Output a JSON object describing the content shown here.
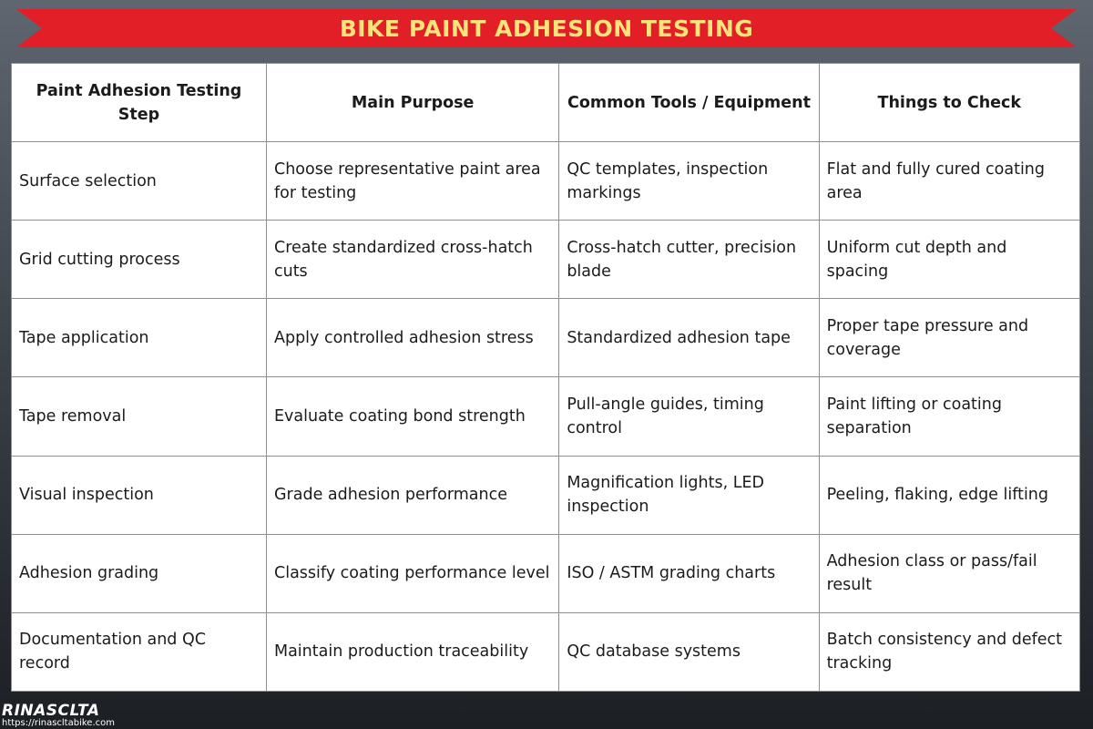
{
  "banner": {
    "title": "BIKE PAINT ADHESION TESTING"
  },
  "table": {
    "headers": [
      "Paint Adhesion Testing Step",
      "Main Purpose",
      "Common Tools / Equipment",
      "Things to Check"
    ],
    "rows": [
      [
        "Surface selection",
        "Choose representative paint area for testing",
        "QC templates, inspection markings",
        "Flat and fully cured coating area"
      ],
      [
        "Grid cutting process",
        "Create standardized cross-hatch cuts",
        "Cross-hatch cutter, precision blade",
        "Uniform cut depth and spacing"
      ],
      [
        "Tape application",
        "Apply controlled adhesion stress",
        "Standardized adhesion tape",
        "Proper tape pressure and coverage"
      ],
      [
        "Tape removal",
        "Evaluate coating bond strength",
        "Pull-angle guides, timing control",
        "Paint lifting or coating separation"
      ],
      [
        "Visual inspection",
        "Grade adhesion performance",
        "Magnification lights, LED inspection",
        "Peeling, flaking, edge lifting"
      ],
      [
        "Adhesion grading",
        "Classify coating performance level",
        "ISO / ASTM grading charts",
        "Adhesion class or pass/fail result"
      ],
      [
        "Documentation and QC record",
        "Maintain production traceability",
        "QC database systems",
        "Batch consistency and defect tracking"
      ]
    ]
  },
  "footer": {
    "logo_text": "RINASCLTA",
    "url": "https://rinascltabike.com"
  },
  "colors": {
    "banner_red": "#e21f26",
    "banner_text": "#f9e47a",
    "table_border": "#8e8e8e"
  }
}
